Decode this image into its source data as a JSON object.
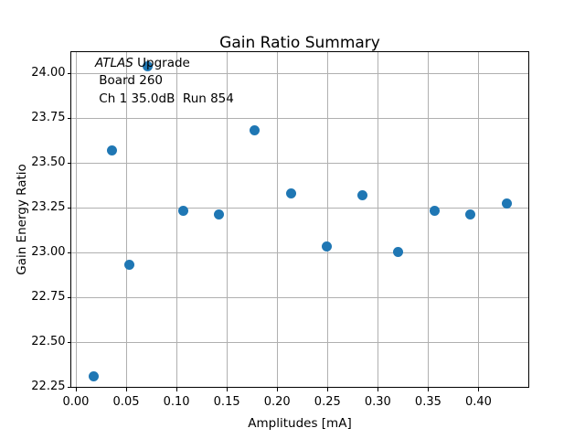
{
  "chart_data": {
    "type": "scatter",
    "title": "Gain Ratio Summary",
    "xlabel": "Amplitudes [mA]",
    "ylabel": "Gain Energy Ratio",
    "x": [
      0.018,
      0.036,
      0.053,
      0.071,
      0.107,
      0.142,
      0.178,
      0.214,
      0.249,
      0.285,
      0.32,
      0.356,
      0.392,
      0.428
    ],
    "y": [
      22.31,
      23.57,
      22.93,
      24.04,
      23.23,
      23.21,
      23.68,
      23.33,
      23.03,
      23.32,
      23.0,
      23.23,
      23.21,
      23.27
    ],
    "xticks": [
      0.0,
      0.05,
      0.1,
      0.15,
      0.2,
      0.25,
      0.3,
      0.35,
      0.4
    ],
    "yticks": [
      22.25,
      22.5,
      22.75,
      23.0,
      23.25,
      23.5,
      23.75,
      24.0
    ],
    "xlim": [
      -0.0045,
      0.4495
    ],
    "ylim": [
      22.2465,
      24.117
    ],
    "grid": true,
    "legend": "none",
    "marker_color": "#1f77b4",
    "grid_color": "#b0b0b0",
    "annotation_lines": [
      "ATLAS Upgrade",
      "Board 260",
      "Ch 1 35.0dB  Run 854"
    ]
  },
  "annotation": {
    "atlas": "ATLAS",
    "line1_rest": " Upgrade",
    "line2": " Board 260",
    "line3": " Ch 1 35.0dB  Run 854"
  }
}
